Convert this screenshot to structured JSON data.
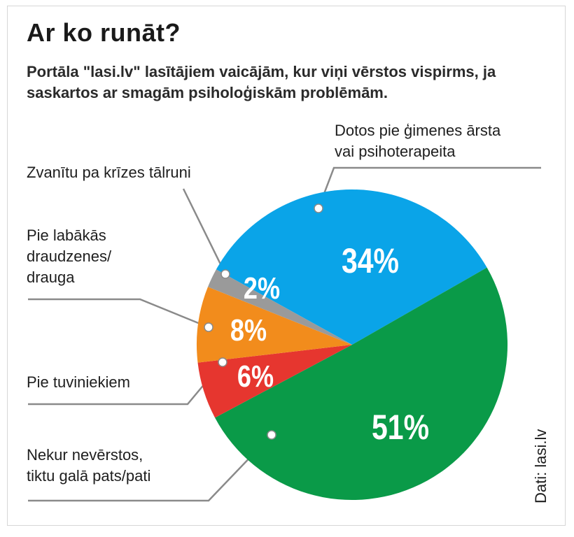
{
  "title": "Ar ko runāt?",
  "subtitle": "Portāla \"lasi.lv\" lasītājiem vaicājām, kur viņi vērstos vispirms, ja saskartos ar smagām psiholoģiskām problēmām.",
  "source": "Dati: lasi.lv",
  "chart_data": {
    "type": "pie",
    "title": "Ar ko runāt?",
    "slices": [
      {
        "label_lines": [
          "Dotos pie ģimenes ārsta",
          "vai psihoterapeita"
        ],
        "value": 34,
        "value_label": "34%",
        "color": "#0aa4e8"
      },
      {
        "label_lines": [
          "Nekur nevērstos,",
          "tiktu galā pats/pati"
        ],
        "value": 51,
        "value_label": "51%",
        "color": "#0a9a48"
      },
      {
        "label_lines": [
          "Pie tuviniekiem"
        ],
        "value": 6,
        "value_label": "6%",
        "color": "#e6362f"
      },
      {
        "label_lines": [
          "Pie labākās",
          "draudzenes/",
          "drauga"
        ],
        "value": 8,
        "value_label": "8%",
        "color": "#f28c1c"
      },
      {
        "label_lines": [
          "Zvanītu pa krīzes tālruni"
        ],
        "value": 2,
        "value_label": "2%",
        "color": "#9a9a9a"
      }
    ]
  }
}
